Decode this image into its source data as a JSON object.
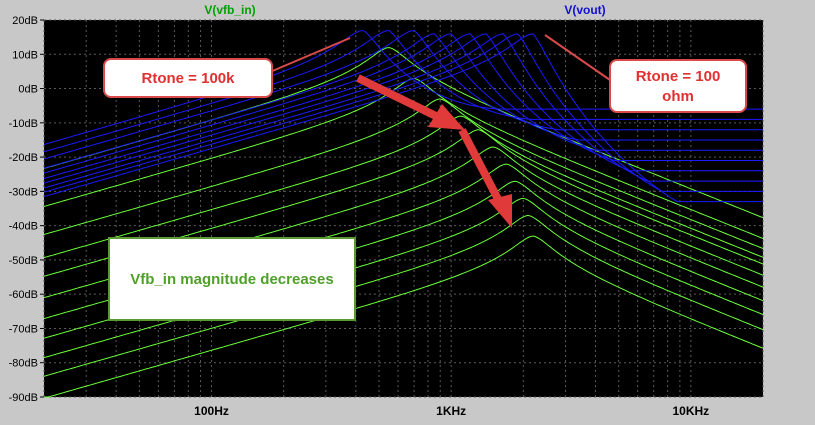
{
  "chart_data": {
    "type": "line",
    "x_scale": "log",
    "xlim": [
      20,
      20000
    ],
    "ylim": [
      -90,
      20
    ],
    "y_unit": "dB",
    "y_ticks": [
      20,
      10,
      0,
      -10,
      -20,
      -30,
      -40,
      -50,
      -60,
      -70,
      -80,
      -90
    ],
    "y_tick_labels": [
      "20dB",
      "10dB",
      "0dB",
      "-10dB",
      "-20dB",
      "-30dB",
      "-40dB",
      "-50dB",
      "-60dB",
      "-70dB",
      "-80dB",
      "-90dB"
    ],
    "x_ticks": [
      100,
      1000,
      10000
    ],
    "x_tick_labels": [
      "100Hz",
      "1KHz",
      "10KHz"
    ],
    "grid": true,
    "series_groups": [
      {
        "name": "V(vfb_in)",
        "color": "#6bff3a",
        "curves": [
          {
            "peak_freq": 550,
            "peak_db": 12,
            "offset_db": -5
          },
          {
            "peak_freq": 700,
            "peak_db": 3,
            "offset_db": -8
          },
          {
            "peak_freq": 900,
            "peak_db": -3,
            "offset_db": -11
          },
          {
            "peak_freq": 1100,
            "peak_db": -8,
            "offset_db": -14
          },
          {
            "peak_freq": 1300,
            "peak_db": -12,
            "offset_db": -17
          },
          {
            "peak_freq": 1500,
            "peak_db": -17,
            "offset_db": -20
          },
          {
            "peak_freq": 1700,
            "peak_db": -22,
            "offset_db": -23
          },
          {
            "peak_freq": 1850,
            "peak_db": -27,
            "offset_db": -26
          },
          {
            "peak_freq": 2000,
            "peak_db": -32,
            "offset_db": -29
          },
          {
            "peak_freq": 2100,
            "peak_db": -37,
            "offset_db": -32
          },
          {
            "peak_freq": 2200,
            "peak_db": -43,
            "offset_db": -35
          }
        ]
      },
      {
        "name": "V(vout)",
        "color": "#1a1aff",
        "curves": [
          {
            "peak_freq": 430,
            "peak_db": 17,
            "hf_db": -6
          },
          {
            "peak_freq": 550,
            "peak_db": 17,
            "hf_db": -9
          },
          {
            "peak_freq": 700,
            "peak_db": 17,
            "hf_db": -12
          },
          {
            "peak_freq": 850,
            "peak_db": 16,
            "hf_db": -15
          },
          {
            "peak_freq": 1000,
            "peak_db": 16,
            "hf_db": -18
          },
          {
            "peak_freq": 1200,
            "peak_db": 16,
            "hf_db": -21
          },
          {
            "peak_freq": 1400,
            "peak_db": 16,
            "hf_db": -24
          },
          {
            "peak_freq": 1650,
            "peak_db": 16,
            "hf_db": -27
          },
          {
            "peak_freq": 1900,
            "peak_db": 16,
            "hf_db": -30
          },
          {
            "peak_freq": 2200,
            "peak_db": 16,
            "hf_db": -33
          }
        ]
      }
    ],
    "annotations": [
      {
        "text": "Rtone = 100k"
      },
      {
        "text_lines": [
          "Rtone = 100",
          "ohm"
        ]
      },
      {
        "text": "Vfb_in magnitude decreases"
      }
    ]
  },
  "colors": {
    "background": "#000000",
    "grid": "#5a5a5a",
    "frame": "#c8c8c8",
    "green_legend": "#00a000",
    "blue_legend": "#1010d0",
    "callout_border": "#d94a4a",
    "callout_text": "#e03030",
    "note_border": "#5a9a30",
    "note_text": "#4fa02a",
    "arrow": "#e03a3a"
  }
}
